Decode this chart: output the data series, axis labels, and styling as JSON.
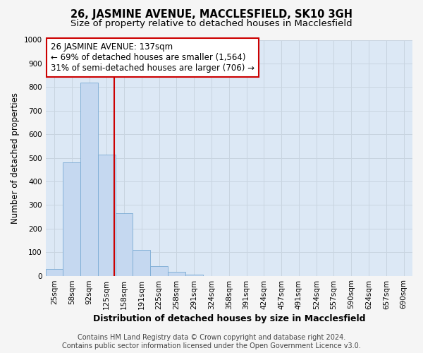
{
  "title": "26, JASMINE AVENUE, MACCLESFIELD, SK10 3GH",
  "subtitle": "Size of property relative to detached houses in Macclesfield",
  "xlabel": "Distribution of detached houses by size in Macclesfield",
  "ylabel": "Number of detached properties",
  "footer_line1": "Contains HM Land Registry data © Crown copyright and database right 2024.",
  "footer_line2": "Contains public sector information licensed under the Open Government Licence v3.0.",
  "bar_labels": [
    "25sqm",
    "58sqm",
    "92sqm",
    "125sqm",
    "158sqm",
    "191sqm",
    "225sqm",
    "258sqm",
    "291sqm",
    "324sqm",
    "358sqm",
    "391sqm",
    "424sqm",
    "457sqm",
    "491sqm",
    "524sqm",
    "557sqm",
    "590sqm",
    "624sqm",
    "657sqm",
    "690sqm"
  ],
  "bar_values": [
    30,
    480,
    820,
    515,
    265,
    110,
    40,
    18,
    5,
    0,
    0,
    0,
    0,
    0,
    0,
    0,
    0,
    0,
    0,
    0,
    0
  ],
  "bar_color": "#c5d8f0",
  "bar_edge_color": "#7aabd4",
  "bar_edge_width": 0.6,
  "vline_x": 3.42,
  "vline_color": "#cc0000",
  "annotation_text": "26 JASMINE AVENUE: 137sqm\n← 69% of detached houses are smaller (1,564)\n31% of semi-detached houses are larger (706) →",
  "annotation_box_color": "#ffffff",
  "annotation_box_edge_color": "#cc0000",
  "annotation_box_edge_width": 1.5,
  "ylim": [
    0,
    1000
  ],
  "yticks": [
    0,
    100,
    200,
    300,
    400,
    500,
    600,
    700,
    800,
    900,
    1000
  ],
  "grid_color": "#c8d4e0",
  "bg_color": "#f5f5f5",
  "plot_bg_color": "#dce8f5",
  "title_fontsize": 10.5,
  "subtitle_fontsize": 9.5,
  "xlabel_fontsize": 9,
  "ylabel_fontsize": 8.5,
  "tick_fontsize": 7.5,
  "annotation_fontsize": 8.5,
  "footer_fontsize": 7
}
